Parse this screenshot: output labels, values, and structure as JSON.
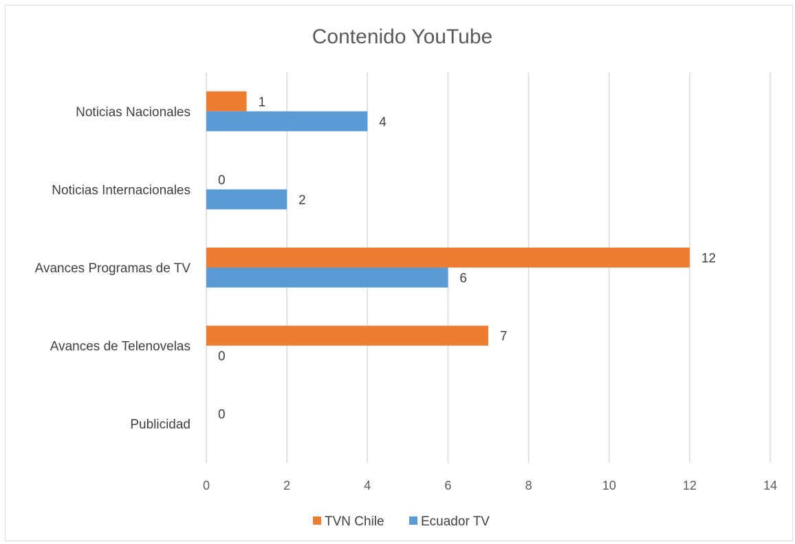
{
  "chart_data": {
    "type": "bar",
    "orientation": "horizontal",
    "title": "Contenido YouTube",
    "categories": [
      "Noticias Nacionales",
      "Noticias Internacionales",
      "Avances Programas de TV",
      "Avances de Telenovelas",
      "Publicidad"
    ],
    "series": [
      {
        "name": "TVN Chile",
        "color": "#ED7D31",
        "values": [
          1,
          0,
          12,
          7,
          0
        ]
      },
      {
        "name": "Ecuador TV",
        "color": "#5B9BD5",
        "values": [
          4,
          2,
          6,
          0,
          null
        ]
      }
    ],
    "xlim": [
      0,
      14
    ],
    "xticks": [
      0,
      2,
      4,
      6,
      8,
      10,
      12,
      14
    ],
    "grid": true,
    "legend": "bottom",
    "data_labels": true
  }
}
